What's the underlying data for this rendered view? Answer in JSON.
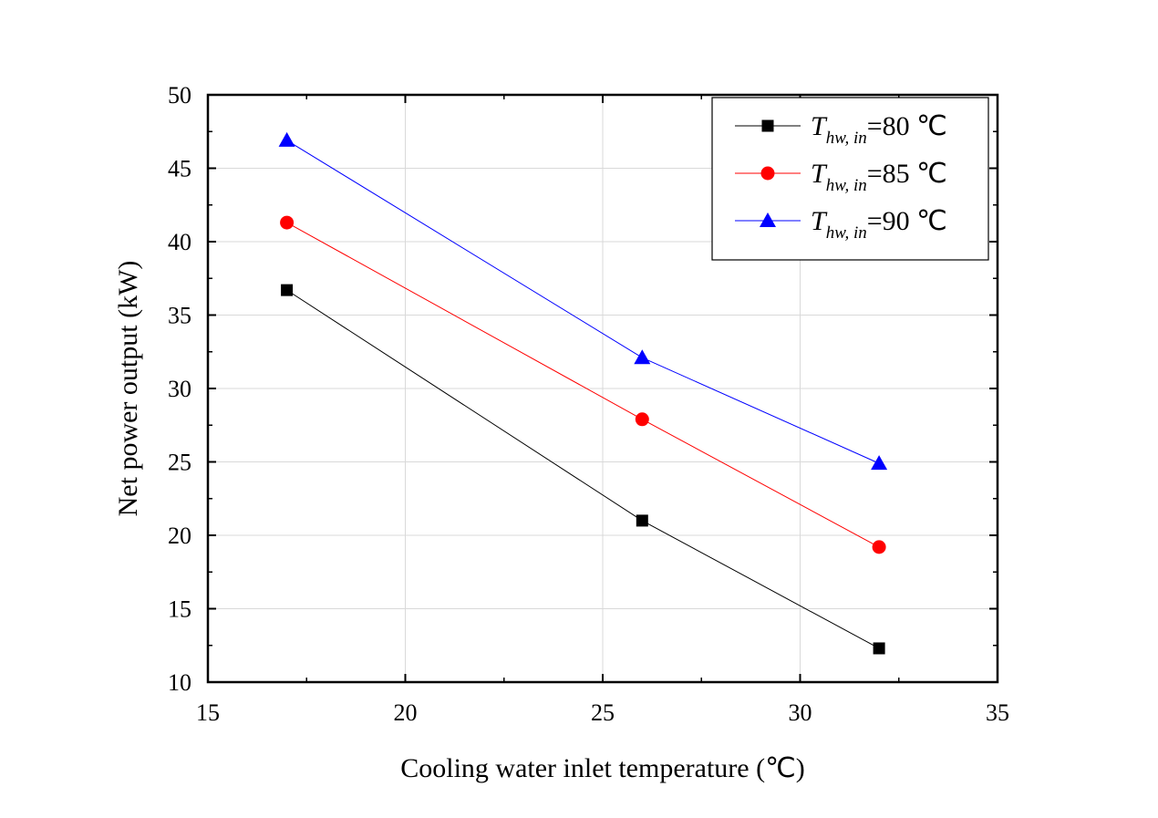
{
  "chart_data": {
    "type": "line",
    "title": "",
    "xlabel": "Cooling water inlet temperature (℃)",
    "ylabel": "Net power output (kW)",
    "xlim": [
      15,
      35
    ],
    "ylim": [
      10,
      50
    ],
    "xticks": [
      15,
      20,
      25,
      30,
      35
    ],
    "yticks": [
      10,
      15,
      20,
      25,
      30,
      35,
      40,
      45,
      50
    ],
    "grid": true,
    "legend_position": "top-right",
    "x": [
      17,
      26,
      32
    ],
    "series": [
      {
        "name": "T_hw,in=80 ℃",
        "symbol": "T",
        "subscript": "hw, in",
        "suffix": "=80 ℃",
        "color": "#000000",
        "marker": "square",
        "values": [
          36.7,
          21.0,
          12.3
        ]
      },
      {
        "name": "T_hw,in=85 ℃",
        "symbol": "T",
        "subscript": "hw, in",
        "suffix": "=85 ℃",
        "color": "#ff0000",
        "marker": "circle",
        "values": [
          41.3,
          27.9,
          19.2
        ]
      },
      {
        "name": "T_hw,in=90 ℃",
        "symbol": "T",
        "subscript": "hw, in",
        "suffix": "=90 ℃",
        "color": "#0000ff",
        "marker": "triangle",
        "values": [
          46.9,
          32.1,
          24.9
        ]
      }
    ]
  }
}
